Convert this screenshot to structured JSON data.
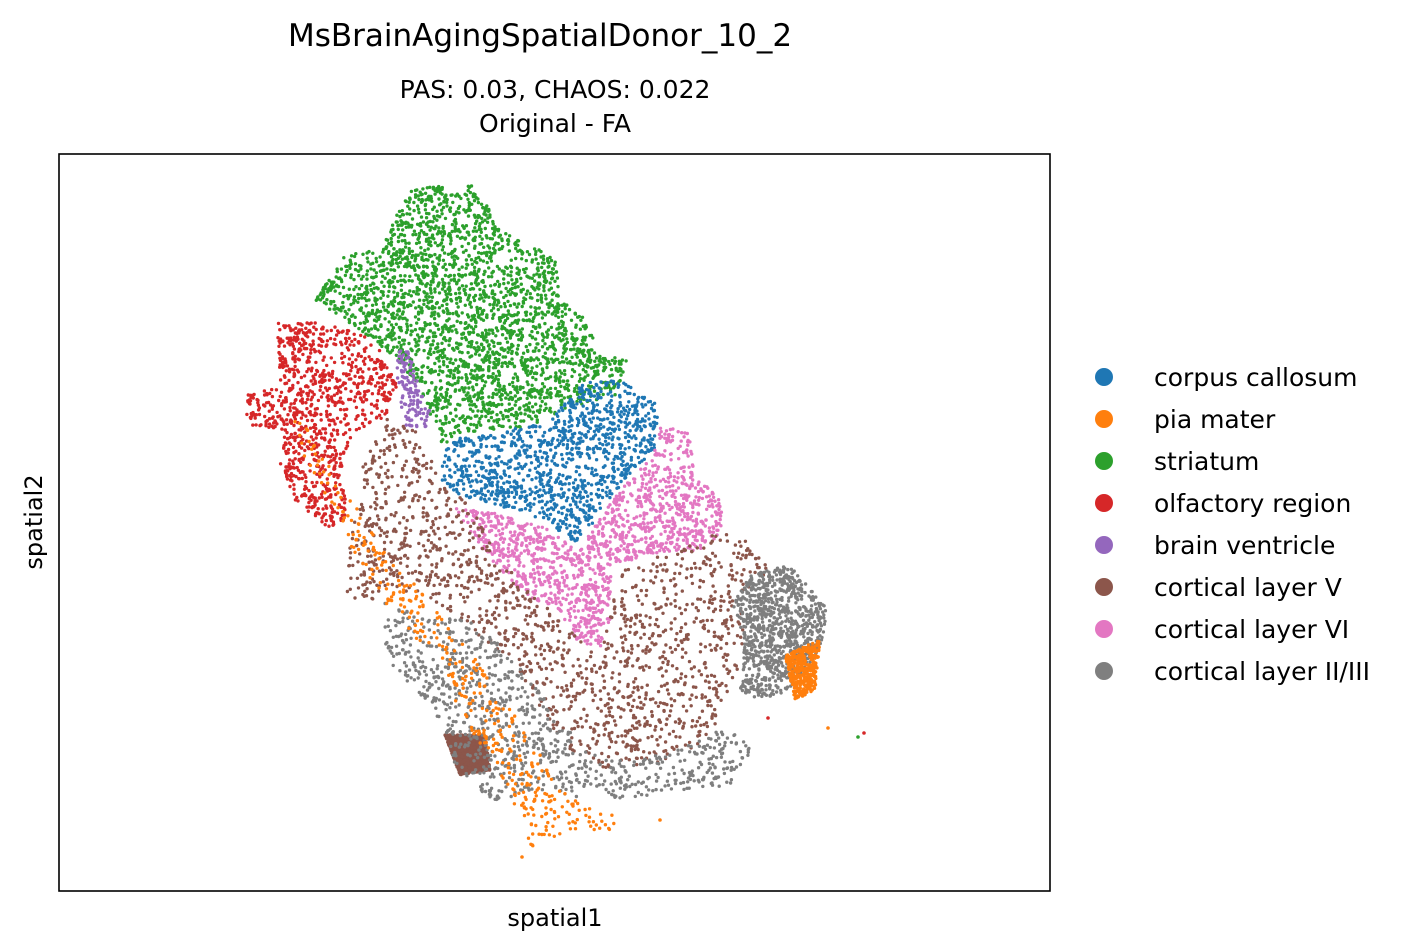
{
  "figure": {
    "suptitle": "MsBrainAgingSpatialDonor_10_2",
    "subtitle_line1": "PAS: 0.03,  CHAOS: 0.022",
    "subtitle_line2": "Original - FA"
  },
  "chart_data": {
    "type": "scatter",
    "xlabel": "spatial1",
    "ylabel": "spatial2",
    "grid": false,
    "ticks": false,
    "legend_placement": "right, outside plot",
    "series": [
      {
        "name": "corpus callosum",
        "color": "#1f77b4"
      },
      {
        "name": "pia mater",
        "color": "#ff7f0e"
      },
      {
        "name": "striatum",
        "color": "#2ca02c"
      },
      {
        "name": "olfactory region",
        "color": "#d62728"
      },
      {
        "name": "brain ventricle",
        "color": "#9467bd"
      },
      {
        "name": "cortical layer V",
        "color": "#8c564b"
      },
      {
        "name": "cortical layer VI",
        "color": "#e377c2"
      },
      {
        "name": "cortical layer II/III",
        "color": "#7f7f7f"
      }
    ]
  }
}
